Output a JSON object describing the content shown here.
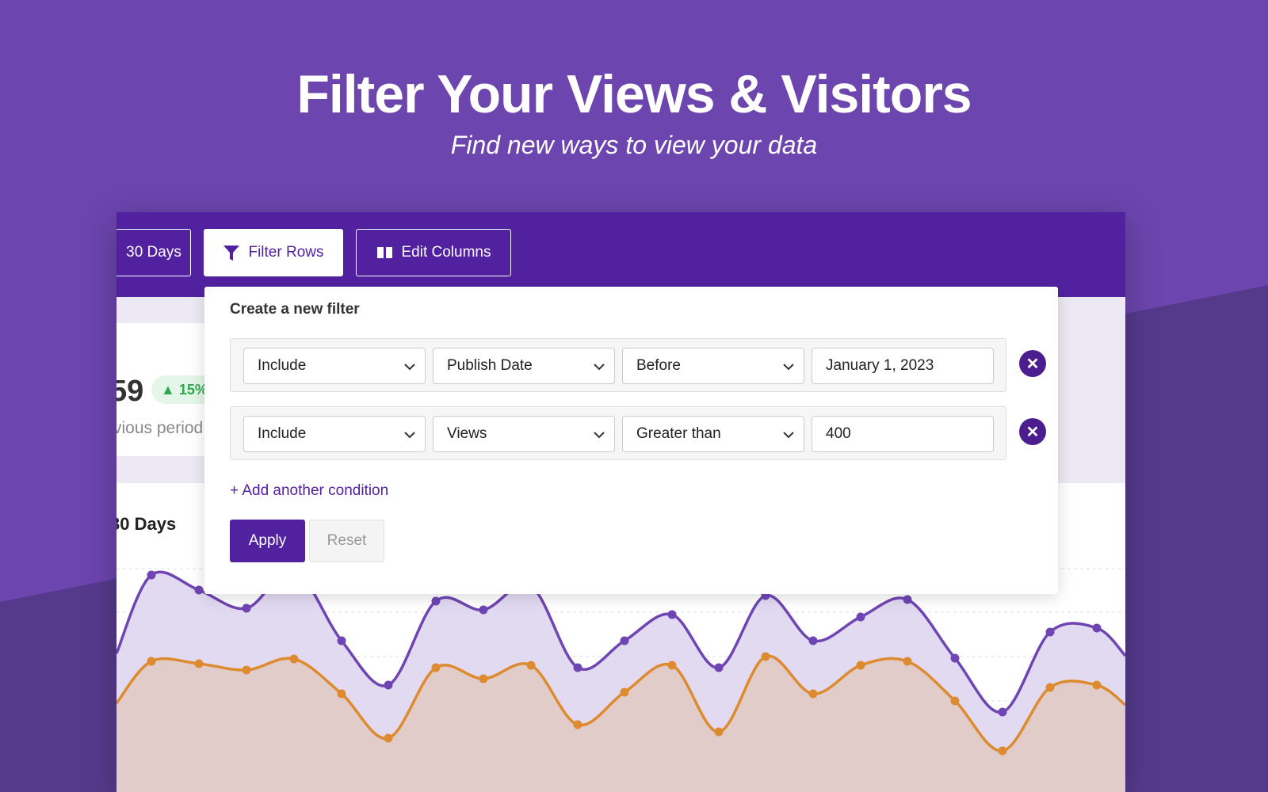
{
  "header": {
    "title": "Filter Your Views & Visitors",
    "subtitle": "Find new ways to view your data"
  },
  "toolbar": {
    "range": "30 Days",
    "filter": "Filter Rows",
    "columns": "Edit Columns"
  },
  "background": {
    "stat": "59",
    "change": "15%",
    "compare": "vious period",
    "chart_title": "30 Days"
  },
  "filter": {
    "title": "Create a new filter",
    "rows": [
      [
        "Include",
        "Publish Date",
        "Before",
        "January 1, 2023"
      ],
      [
        "Include",
        "Views",
        "Greater than",
        "400"
      ]
    ],
    "add": "+ Add another condition",
    "apply": "Apply",
    "reset": "Reset"
  }
}
